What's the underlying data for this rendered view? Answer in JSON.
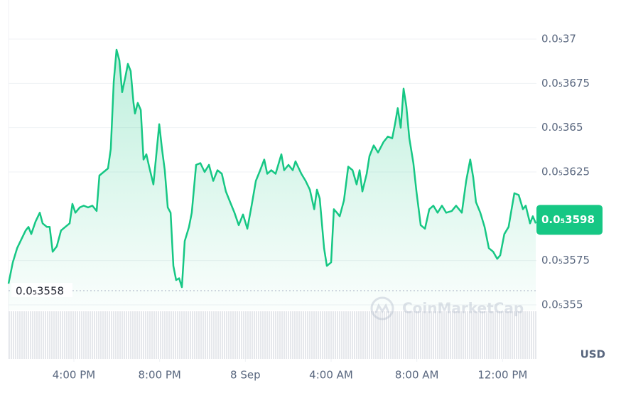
{
  "chart_data": {
    "type": "line",
    "color": "#16c784",
    "x": [
      12.95,
      13.15,
      13.35,
      13.55,
      13.75,
      13.88,
      14.01,
      14.21,
      14.41,
      14.54,
      14.74,
      14.87,
      15.01,
      15.2,
      15.4,
      15.6,
      15.8,
      15.93,
      16.07,
      16.27,
      16.46,
      16.66,
      16.86,
      17.06,
      17.19,
      17.39,
      17.59,
      17.72,
      17.86,
      17.99,
      18.12,
      18.25,
      18.39,
      18.52,
      18.65,
      18.78,
      18.85,
      18.98,
      19.12,
      19.25,
      19.38,
      19.51,
      19.71,
      19.84,
      19.98,
      20.11,
      20.24,
      20.38,
      20.51,
      20.64,
      20.77,
      20.91,
      21.04,
      21.17,
      21.37,
      21.5,
      21.7,
      21.9,
      22.1,
      22.3,
      22.5,
      22.7,
      22.9,
      23.09,
      23.29,
      23.49,
      23.69,
      23.89,
      24.09,
      24.29,
      24.49,
      24.69,
      24.88,
      25.02,
      25.21,
      25.41,
      25.68,
      25.81,
      26.01,
      26.21,
      26.34,
      26.61,
      26.81,
      27.01,
      27.21,
      27.34,
      27.47,
      27.67,
      27.8,
      28.0,
      28.13,
      28.27,
      28.4,
      28.6,
      28.8,
      29.0,
      29.19,
      29.33,
      29.46,
      29.66,
      29.79,
      29.99,
      30.19,
      30.45,
      30.65,
      30.85,
      30.98,
      31.11,
      31.25,
      31.38,
      31.51,
      31.65,
      31.84,
      31.98,
      32.18,
      32.38,
      32.58,
      32.77,
      32.97,
      33.17,
      33.37,
      33.63,
      33.83,
      34.1,
      34.3,
      34.49,
      34.63,
      34.76,
      34.96,
      35.16,
      35.36,
      35.56,
      35.75,
      35.89,
      36.08,
      36.28,
      36.42,
      36.55,
      36.75,
      36.95,
      37.08,
      37.28,
      37.41,
      37.55
    ],
    "values": [
      3.562e-06,
      3.574e-06,
      3.582e-06,
      3.587e-06,
      3.592e-06,
      3.594e-06,
      3.59e-06,
      3.597e-06,
      3.602e-06,
      3.596e-06,
      3.594e-06,
      3.594e-06,
      3.58e-06,
      3.583e-06,
      3.592e-06,
      3.594e-06,
      3.596e-06,
      3.607e-06,
      3.602e-06,
      3.605e-06,
      3.606e-06,
      3.605e-06,
      3.606e-06,
      3.603e-06,
      3.623e-06,
      3.625e-06,
      3.627e-06,
      3.638e-06,
      3.676e-06,
      3.694e-06,
      3.688e-06,
      3.67e-06,
      3.678e-06,
      3.686e-06,
      3.682e-06,
      3.664e-06,
      3.658e-06,
      3.664e-06,
      3.66e-06,
      3.632e-06,
      3.635e-06,
      3.628e-06,
      3.618e-06,
      3.634e-06,
      3.652e-06,
      3.638e-06,
      3.626e-06,
      3.605e-06,
      3.602e-06,
      3.572e-06,
      3.564e-06,
      3.565e-06,
      3.56e-06,
      3.586e-06,
      3.594e-06,
      3.602e-06,
      3.629e-06,
      3.63e-06,
      3.625e-06,
      3.629e-06,
      3.62e-06,
      3.626e-06,
      3.624e-06,
      3.614e-06,
      3.608e-06,
      3.602e-06,
      3.595e-06,
      3.601e-06,
      3.593e-06,
      3.606e-06,
      3.62e-06,
      3.626e-06,
      3.632e-06,
      3.624e-06,
      3.626e-06,
      3.624e-06,
      3.635e-06,
      3.626e-06,
      3.629e-06,
      3.626e-06,
      3.631e-06,
      3.624e-06,
      3.62e-06,
      3.615e-06,
      3.604e-06,
      3.615e-06,
      3.61e-06,
      3.582e-06,
      3.572e-06,
      3.574e-06,
      3.604e-06,
      3.602e-06,
      3.6e-06,
      3.609e-06,
      3.628e-06,
      3.626e-06,
      3.618e-06,
      3.626e-06,
      3.614e-06,
      3.624e-06,
      3.634e-06,
      3.64e-06,
      3.636e-06,
      3.642e-06,
      3.645e-06,
      3.644e-06,
      3.652e-06,
      3.661e-06,
      3.65e-06,
      3.672e-06,
      3.662e-06,
      3.644e-06,
      3.63e-06,
      3.614e-06,
      3.595e-06,
      3.593e-06,
      3.604e-06,
      3.606e-06,
      3.602e-06,
      3.606e-06,
      3.602e-06,
      3.603e-06,
      3.606e-06,
      3.602e-06,
      3.62e-06,
      3.632e-06,
      3.622e-06,
      3.608e-06,
      3.602e-06,
      3.594e-06,
      3.582e-06,
      3.58e-06,
      3.576e-06,
      3.578e-06,
      3.59e-06,
      3.594e-06,
      3.604e-06,
      3.613e-06,
      3.612e-06,
      3.604e-06,
      3.606e-06,
      3.596e-06,
      3.6e-06,
      3.596e-06
    ],
    "xlim": [
      12.95,
      37.58
    ],
    "xticks": [
      {
        "value": 16,
        "label": "4:00 PM"
      },
      {
        "value": 20,
        "label": "8:00 PM"
      },
      {
        "value": 24,
        "label": "8 Sep"
      },
      {
        "value": 28,
        "label": "4:00 AM"
      },
      {
        "value": 32,
        "label": "8:00 AM"
      },
      {
        "value": 36,
        "label": "12:00 PM"
      }
    ],
    "ylim": [
      3.55e-06,
      3.7e-06
    ],
    "yticks": [
      {
        "value": 3.7e-06,
        "label": "0.0₅37"
      },
      {
        "value": 3.675e-06,
        "label": "0.0₅3675"
      },
      {
        "value": 3.65e-06,
        "label": "0.0₅365"
      },
      {
        "value": 3.625e-06,
        "label": "0.0₅3625"
      },
      {
        "value": 3.575e-06,
        "label": "0.0₅3575"
      },
      {
        "value": 3.55e-06,
        "label": "0.0₅355"
      }
    ],
    "grid": true,
    "current_price": {
      "value": 3.598e-06,
      "label": "0.0₅3598"
    },
    "reference_price": {
      "value": 3.558e-06,
      "label": "0.0₅3558"
    },
    "currency": "USD",
    "watermark": "CoinMarketCap"
  }
}
